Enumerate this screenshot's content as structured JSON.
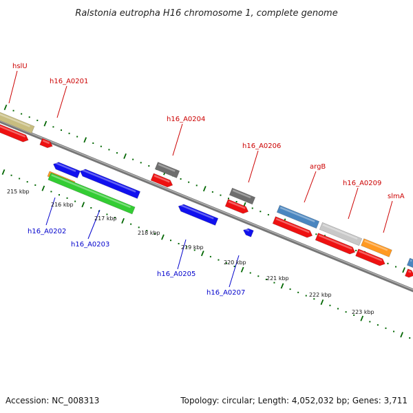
{
  "title": "Ralstonia eutropha H16 chromosome 1, complete genome",
  "accession": "Accession: NC_008313",
  "topology": "Topology: circular; Length: 4,052,032 bp; Genes: 3,711",
  "colors": {
    "forward_label": "#cc0000",
    "reverse_label": "#0000cc",
    "tick": "#006600",
    "backbone": "#777777",
    "cds_red": "#ee1111",
    "cds_blue": "#1111ee",
    "green": "#33cc33",
    "orange": "#ff9922",
    "gray": "#6e6e6e",
    "steelblue": "#4a86c0",
    "lightgray": "#c8c8c8",
    "tan": "#c8bd80"
  },
  "forward_labels": [
    "hslU",
    "h16_A0201",
    "h16_A0204",
    "h16_A0206",
    "argB",
    "h16_A0209",
    "slmA"
  ],
  "reverse_labels": [
    "h16_A0202",
    "h16_A0203",
    "h16_A0205",
    "h16_A0207"
  ],
  "kbp_labels": [
    "215 kbp",
    "216 kbp",
    "217 kbp",
    "218 kbp",
    "219 kbp",
    "220 kbp",
    "221 kbp",
    "222 kbp",
    "223 kbp"
  ]
}
